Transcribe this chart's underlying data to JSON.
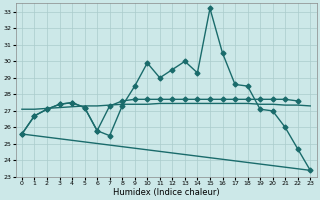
{
  "xlabel": "Humidex (Indice chaleur)",
  "xlim": [
    -0.5,
    23.5
  ],
  "ylim": [
    23,
    33.5
  ],
  "yticks": [
    23,
    24,
    25,
    26,
    27,
    28,
    29,
    30,
    31,
    32,
    33
  ],
  "xticks": [
    0,
    1,
    2,
    3,
    4,
    5,
    6,
    7,
    8,
    9,
    10,
    11,
    12,
    13,
    14,
    15,
    16,
    17,
    18,
    19,
    20,
    21,
    22,
    23
  ],
  "background_color": "#cce8e8",
  "grid_color": "#aacccc",
  "series": [
    {
      "x": [
        0,
        1,
        2,
        3,
        4,
        5,
        6,
        7,
        8,
        9,
        10,
        11,
        12,
        13,
        14,
        15,
        16,
        17,
        18,
        19,
        20,
        21,
        22,
        23
      ],
      "y": [
        25.6,
        26.7,
        27.1,
        27.4,
        27.5,
        27.2,
        25.8,
        25.5,
        27.3,
        28.5,
        29.9,
        29.0,
        29.5,
        30.0,
        29.3,
        33.2,
        30.5,
        28.6,
        28.5,
        27.1,
        27.0,
        26.0,
        24.7,
        23.4
      ],
      "color": "#1a6b6b",
      "lw": 1.0,
      "marker": "D",
      "ms": 2.5,
      "zorder": 5
    },
    {
      "x": [
        0,
        1,
        2,
        3,
        4,
        5,
        6,
        7,
        8,
        9,
        10,
        11,
        12,
        13,
        14,
        15,
        16,
        17,
        18,
        19,
        20,
        21,
        22
      ],
      "y": [
        25.6,
        26.7,
        27.1,
        27.4,
        27.5,
        27.2,
        25.8,
        27.3,
        27.6,
        27.7,
        27.7,
        27.7,
        27.7,
        27.7,
        27.7,
        27.7,
        27.7,
        27.7,
        27.7,
        27.7,
        27.7,
        27.7,
        27.6
      ],
      "color": "#1a6b6b",
      "lw": 1.0,
      "marker": "D",
      "ms": 2.5,
      "zorder": 4
    },
    {
      "x": [
        0,
        1,
        2,
        3,
        4,
        5,
        6,
        7,
        8,
        9,
        10,
        11,
        12,
        13,
        14,
        15,
        16,
        17,
        18,
        19,
        20,
        21,
        22,
        23
      ],
      "y": [
        27.1,
        27.1,
        27.15,
        27.2,
        27.25,
        27.3,
        27.3,
        27.35,
        27.4,
        27.4,
        27.4,
        27.45,
        27.45,
        27.45,
        27.45,
        27.45,
        27.45,
        27.45,
        27.45,
        27.4,
        27.4,
        27.35,
        27.35,
        27.3
      ],
      "color": "#1a6b6b",
      "lw": 1.0,
      "marker": null,
      "ms": 0,
      "zorder": 3
    },
    {
      "x": [
        0,
        23
      ],
      "y": [
        25.6,
        23.4
      ],
      "color": "#1a6b6b",
      "lw": 1.0,
      "marker": null,
      "ms": 0,
      "zorder": 3
    }
  ]
}
